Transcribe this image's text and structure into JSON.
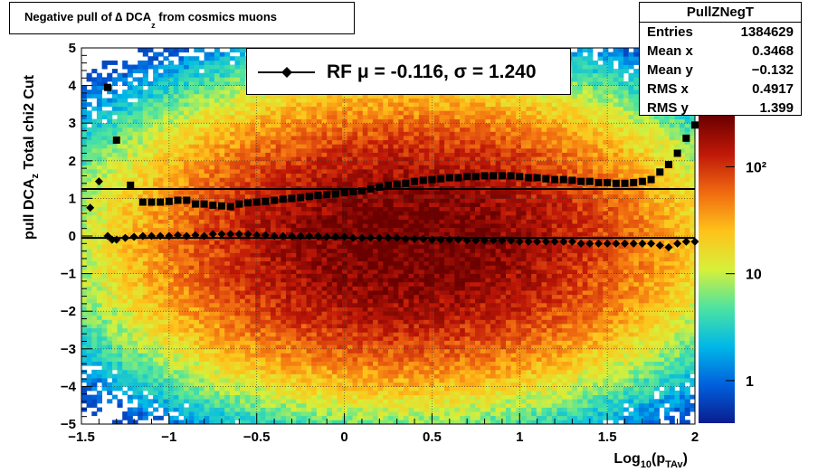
{
  "title": {
    "main": "Negative pull of ∆ DCA",
    "sub": "z",
    "tail": " from cosmics muons"
  },
  "stats": {
    "name": "PullZNegT",
    "rows": [
      {
        "key": "Entries",
        "value": "1384629"
      },
      {
        "key": "Mean x",
        "value": "0.3468"
      },
      {
        "key": "Mean y",
        "value": "−0.132"
      },
      {
        "key": "RMS x",
        "value": "0.4917"
      },
      {
        "key": "RMS y",
        "value": "1.399"
      }
    ]
  },
  "legend": {
    "label": "RF μ = -0.116, σ =   1.240"
  },
  "colors": {
    "axis": "#000000",
    "markers": "#000000",
    "palette": [
      "#0a1d8e",
      "#0060dd",
      "#00b8e8",
      "#4de3a0",
      "#d7f03a",
      "#ffc21a",
      "#f06a10",
      "#c01808",
      "#6a0000"
    ]
  },
  "chart_data": {
    "type": "heatmap",
    "title": "Negative pull of ∆ DCA_z from cosmics muons",
    "xlabel": "Log10(pTAv)",
    "ylabel": "pull DCA_z    Total chi2 Cut",
    "xlim": [
      -1.5,
      2
    ],
    "ylim": [
      -5,
      5
    ],
    "x_ticks": [
      "−1.5",
      "−1",
      "−0.5",
      "0",
      "0.5",
      "1",
      "1.5",
      "2"
    ],
    "y_ticks": [
      "−5",
      "−4",
      "−3",
      "−2",
      "−1",
      "0",
      "1",
      "2",
      "3",
      "4",
      "5"
    ],
    "z_scale": "log",
    "z_ticks": [
      "1",
      "10",
      "10²"
    ],
    "grid": true,
    "heatmap": {
      "x_center": 0.35,
      "x_rms": 0.49,
      "y_center": -0.13,
      "y_rms": 1.4,
      "z_max": 300
    },
    "series": [
      {
        "name": "RF",
        "marker": "diamond",
        "points": [
          [
            -1.45,
            0.75
          ],
          [
            -1.4,
            1.45
          ],
          [
            -1.35,
            0.0
          ],
          [
            -1.325,
            -0.1
          ],
          [
            -1.3,
            -0.1
          ],
          [
            -1.25,
            -0.05
          ],
          [
            -1.2,
            -0.02
          ],
          [
            -1.15,
            0.0
          ],
          [
            -1.1,
            0.0
          ],
          [
            -1.05,
            0.0
          ],
          [
            -1.0,
            0.0
          ],
          [
            -0.95,
            0.02
          ],
          [
            -0.9,
            0.0
          ],
          [
            -0.85,
            0.02
          ],
          [
            -0.8,
            0.0
          ],
          [
            -0.75,
            0.05
          ],
          [
            -0.7,
            0.05
          ],
          [
            -0.65,
            0.05
          ],
          [
            -0.6,
            0.05
          ],
          [
            -0.55,
            0.05
          ],
          [
            -0.5,
            0.02
          ],
          [
            -0.45,
            0.02
          ],
          [
            -0.4,
            0.0
          ],
          [
            -0.35,
            0.0
          ],
          [
            -0.3,
            0.0
          ],
          [
            -0.25,
            0.0
          ],
          [
            -0.2,
            0.0
          ],
          [
            -0.15,
            0.0
          ],
          [
            -0.1,
            -0.02
          ],
          [
            -0.05,
            -0.02
          ],
          [
            0.0,
            -0.02
          ],
          [
            0.05,
            -0.05
          ],
          [
            0.1,
            -0.05
          ],
          [
            0.15,
            -0.05
          ],
          [
            0.2,
            -0.05
          ],
          [
            0.25,
            -0.05
          ],
          [
            0.3,
            -0.05
          ],
          [
            0.35,
            -0.08
          ],
          [
            0.4,
            -0.08
          ],
          [
            0.45,
            -0.08
          ],
          [
            0.5,
            -0.1
          ],
          [
            0.55,
            -0.1
          ],
          [
            0.6,
            -0.1
          ],
          [
            0.65,
            -0.1
          ],
          [
            0.7,
            -0.12
          ],
          [
            0.75,
            -0.12
          ],
          [
            0.8,
            -0.12
          ],
          [
            0.85,
            -0.12
          ],
          [
            0.9,
            -0.12
          ],
          [
            0.95,
            -0.12
          ],
          [
            1.0,
            -0.15
          ],
          [
            1.05,
            -0.15
          ],
          [
            1.1,
            -0.15
          ],
          [
            1.15,
            -0.15
          ],
          [
            1.2,
            -0.15
          ],
          [
            1.25,
            -0.15
          ],
          [
            1.3,
            -0.15
          ],
          [
            1.35,
            -0.2
          ],
          [
            1.4,
            -0.2
          ],
          [
            1.45,
            -0.2
          ],
          [
            1.5,
            -0.2
          ],
          [
            1.55,
            -0.2
          ],
          [
            1.6,
            -0.2
          ],
          [
            1.65,
            -0.2
          ],
          [
            1.7,
            -0.2
          ],
          [
            1.75,
            -0.2
          ],
          [
            1.8,
            -0.25
          ],
          [
            1.85,
            -0.3
          ],
          [
            1.9,
            -0.2
          ],
          [
            1.95,
            -0.15
          ],
          [
            2.0,
            -0.15
          ]
        ]
      },
      {
        "name": "",
        "marker": "square",
        "points": [
          [
            -1.35,
            3.95
          ],
          [
            -1.3,
            2.55
          ],
          [
            -1.22,
            1.35
          ],
          [
            -1.15,
            0.9
          ],
          [
            -1.1,
            0.9
          ],
          [
            -1.05,
            0.9
          ],
          [
            -1.0,
            0.92
          ],
          [
            -0.95,
            0.95
          ],
          [
            -0.9,
            0.95
          ],
          [
            -0.85,
            0.85
          ],
          [
            -0.8,
            0.85
          ],
          [
            -0.75,
            0.82
          ],
          [
            -0.7,
            0.8
          ],
          [
            -0.65,
            0.78
          ],
          [
            -0.6,
            0.85
          ],
          [
            -0.55,
            0.88
          ],
          [
            -0.5,
            0.9
          ],
          [
            -0.45,
            0.92
          ],
          [
            -0.4,
            0.95
          ],
          [
            -0.35,
            0.98
          ],
          [
            -0.3,
            1.0
          ],
          [
            -0.25,
            1.02
          ],
          [
            -0.2,
            1.05
          ],
          [
            -0.15,
            1.08
          ],
          [
            -0.1,
            1.1
          ],
          [
            -0.05,
            1.12
          ],
          [
            0.0,
            1.15
          ],
          [
            0.05,
            1.18
          ],
          [
            0.1,
            1.2
          ],
          [
            0.15,
            1.25
          ],
          [
            0.2,
            1.3
          ],
          [
            0.25,
            1.35
          ],
          [
            0.3,
            1.38
          ],
          [
            0.35,
            1.4
          ],
          [
            0.4,
            1.45
          ],
          [
            0.45,
            1.48
          ],
          [
            0.5,
            1.5
          ],
          [
            0.55,
            1.52
          ],
          [
            0.6,
            1.55
          ],
          [
            0.65,
            1.55
          ],
          [
            0.7,
            1.58
          ],
          [
            0.75,
            1.58
          ],
          [
            0.8,
            1.6
          ],
          [
            0.85,
            1.6
          ],
          [
            0.9,
            1.6
          ],
          [
            0.95,
            1.6
          ],
          [
            1.0,
            1.58
          ],
          [
            1.05,
            1.55
          ],
          [
            1.1,
            1.55
          ],
          [
            1.15,
            1.52
          ],
          [
            1.2,
            1.5
          ],
          [
            1.25,
            1.5
          ],
          [
            1.3,
            1.48
          ],
          [
            1.35,
            1.45
          ],
          [
            1.4,
            1.45
          ],
          [
            1.45,
            1.42
          ],
          [
            1.5,
            1.42
          ],
          [
            1.55,
            1.4
          ],
          [
            1.6,
            1.4
          ],
          [
            1.65,
            1.42
          ],
          [
            1.7,
            1.45
          ],
          [
            1.75,
            1.5
          ],
          [
            1.8,
            1.7
          ],
          [
            1.85,
            1.9
          ],
          [
            1.9,
            2.2
          ],
          [
            1.95,
            2.6
          ],
          [
            2.0,
            2.95
          ]
        ]
      }
    ],
    "fit_lines": [
      {
        "y": -0.05
      },
      {
        "y": 1.25
      }
    ]
  }
}
